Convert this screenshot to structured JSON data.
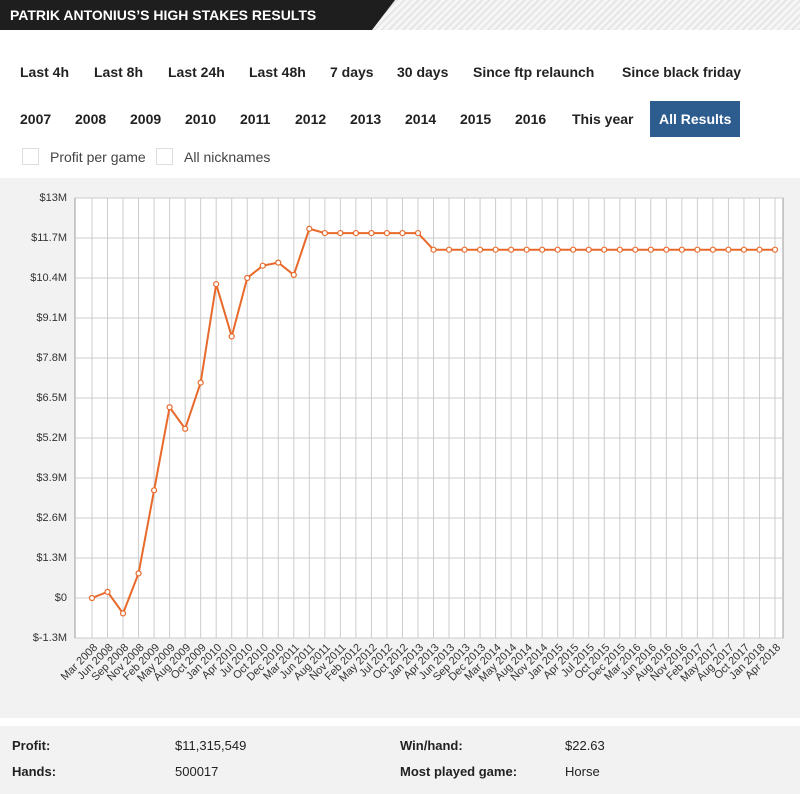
{
  "header": {
    "title": "PATRIK ANTONIUS’S HIGH STAKES RESULTS"
  },
  "filters": {
    "periods": [
      "Last 4h",
      "Last 8h",
      "Last 24h",
      "Last 48h",
      "7 days",
      "30 days",
      "Since ftp relaunch",
      "Since black friday"
    ],
    "years": [
      "2007",
      "2008",
      "2009",
      "2010",
      "2011",
      "2012",
      "2013",
      "2014",
      "2015",
      "2016",
      "This year",
      "All Results"
    ],
    "selected_year": 11
  },
  "options": [
    "Profit per game",
    "All nicknames"
  ],
  "chart_data": {
    "type": "line",
    "color": "#e8692a",
    "grid": true,
    "categories": [
      "Mar 2008",
      "Jun 2008",
      "Sep 2008",
      "Nov 2008",
      "Feb 2009",
      "May 2009",
      "Aug 2009",
      "Oct 2009",
      "Jan 2010",
      "Apr 2010",
      "Jul 2010",
      "Oct 2010",
      "Dec 2010",
      "Mar 2011",
      "Jun 2011",
      "Aug 2011",
      "Nov 2011",
      "Feb 2012",
      "May 2012",
      "Jul 2012",
      "Oct 2012",
      "Jan 2013",
      "Apr 2013",
      "Jun 2013",
      "Sep 2013",
      "Dec 2013",
      "Mar 2014",
      "May 2014",
      "Aug 2014",
      "Nov 2014",
      "Jan 2015",
      "Apr 2015",
      "Jul 2015",
      "Oct 2015",
      "Dec 2015",
      "Mar 2016",
      "Jun 2016",
      "Aug 2016",
      "Nov 2016",
      "Feb 2017",
      "May 2017",
      "Aug 2017",
      "Oct 2017",
      "Jan 2018",
      "Apr 2018"
    ],
    "values": [
      0,
      0.2,
      -0.5,
      0.8,
      3.5,
      6.2,
      5.5,
      7,
      10.2,
      8.5,
      10.4,
      10.8,
      10.9,
      10.5,
      12,
      11.86,
      11.86,
      11.86,
      11.86,
      11.86,
      11.86,
      11.86,
      11.32,
      11.32,
      11.32,
      11.32,
      11.32,
      11.32,
      11.32,
      11.32,
      11.32,
      11.32,
      11.32,
      11.32,
      11.32,
      11.32,
      11.32,
      11.32,
      11.32,
      11.32,
      11.32,
      11.32,
      11.32,
      11.32,
      11.32
    ],
    "ylim": [
      -1.3,
      13
    ],
    "yticks": [
      {
        "value": -1.3,
        "label": "$-1.3M"
      },
      {
        "value": 0,
        "label": "$0"
      },
      {
        "value": 1.3,
        "label": "$1.3M"
      },
      {
        "value": 2.6,
        "label": "$2.6M"
      },
      {
        "value": 3.9,
        "label": "$3.9M"
      },
      {
        "value": 5.2,
        "label": "$5.2M"
      },
      {
        "value": 6.5,
        "label": "$6.5M"
      },
      {
        "value": 7.8,
        "label": "$7.8M"
      },
      {
        "value": 9.1,
        "label": "$9.1M"
      },
      {
        "value": 10.4,
        "label": "$10.4M"
      },
      {
        "value": 11.7,
        "label": "$11.7M"
      },
      {
        "value": 13,
        "label": "$13M"
      }
    ]
  },
  "stats": [
    {
      "label": "Profit:",
      "value": "$11,315,549"
    },
    {
      "label": "Win/hand:",
      "value": "$22.63"
    },
    {
      "label": "Hands:",
      "value": "500017"
    },
    {
      "label": "Most played game:",
      "value": "Horse"
    }
  ]
}
